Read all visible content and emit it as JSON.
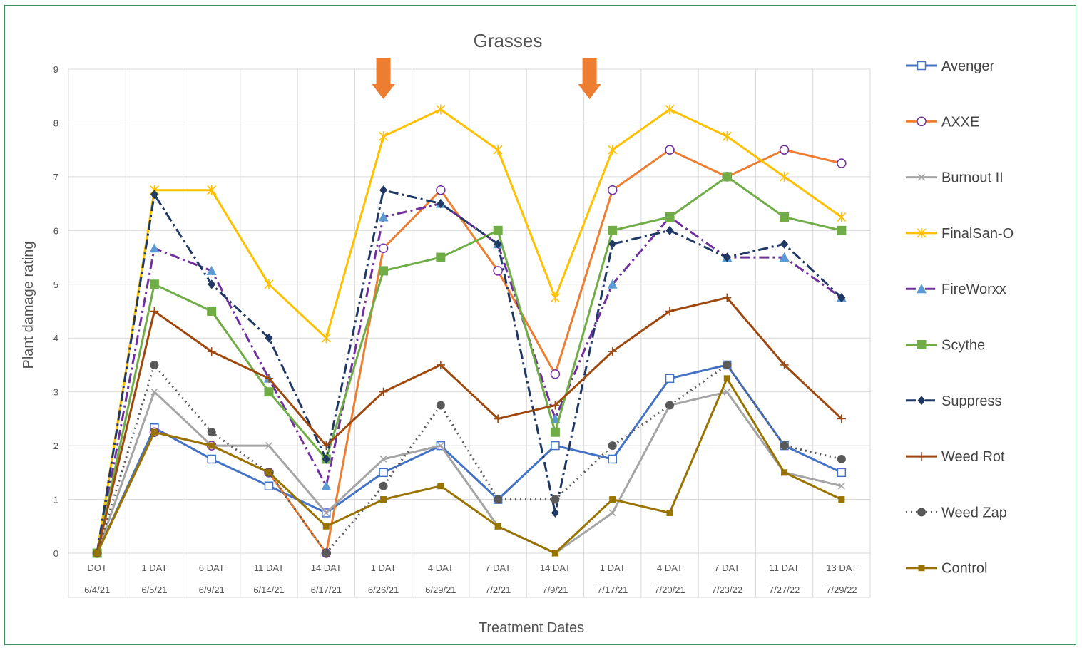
{
  "chart_data": {
    "type": "line",
    "title": "Grasses",
    "xlabel": "Treatment Dates",
    "ylabel": "Plant damage rating",
    "ylim": [
      0,
      9
    ],
    "yticks": [
      0,
      1,
      2,
      3,
      4,
      5,
      6,
      7,
      8,
      9
    ],
    "grid": true,
    "legend_position": "right",
    "categories": [
      {
        "top": "DOT",
        "bottom": "6/4/21"
      },
      {
        "top": "1 DAT",
        "bottom": "6/5/21"
      },
      {
        "top": "6 DAT",
        "bottom": "6/9/21"
      },
      {
        "top": "11 DAT",
        "bottom": "6/14/21"
      },
      {
        "top": "14 DAT",
        "bottom": "6/17/21"
      },
      {
        "top": "1 DAT",
        "bottom": "6/26/21"
      },
      {
        "top": "4 DAT",
        "bottom": "6/29/21"
      },
      {
        "top": "7 DAT",
        "bottom": "7/2/21"
      },
      {
        "top": "14 DAT",
        "bottom": "7/9/21"
      },
      {
        "top": "1 DAT",
        "bottom": "7/17/21"
      },
      {
        "top": "4 DAT",
        "bottom": "7/20/21"
      },
      {
        "top": "7 DAT",
        "bottom": "7/23/22"
      },
      {
        "top": "11 DAT",
        "bottom": "7/27/22"
      },
      {
        "top": "13 DAT",
        "bottom": "7/29/22"
      }
    ],
    "arrow_color": "#ed7d31",
    "arrow_positions": [
      5,
      8.6
    ],
    "series": [
      {
        "name": "Avenger",
        "color": "#4472c4",
        "marker": "open-square",
        "dash": "solid",
        "values": [
          0,
          2.33,
          1.75,
          1.25,
          0.75,
          1.5,
          2,
          1,
          2,
          1.75,
          3.25,
          3.5,
          2,
          1.5
        ]
      },
      {
        "name": "AXXE",
        "color": "#ed7d31",
        "marker": "open-circle",
        "marker_color": "#7030a0",
        "dash": "solid",
        "values": [
          0,
          2.25,
          2,
          1.5,
          0,
          5.67,
          6.75,
          5.25,
          3.33,
          6.75,
          7.5,
          7,
          7.5,
          7.25
        ]
      },
      {
        "name": "Burnout II",
        "color": "#a5a5a5",
        "marker": "x",
        "dash": "solid",
        "values": [
          0,
          3,
          2,
          2,
          0.75,
          1.75,
          2,
          0.5,
          0,
          0.75,
          2.75,
          3,
          1.5,
          1.25
        ]
      },
      {
        "name": "FinalSan-O",
        "color": "#ffc000",
        "marker": "star",
        "dash": "solid",
        "values": [
          0,
          6.75,
          6.75,
          5,
          4,
          7.75,
          8.25,
          7.5,
          4.75,
          7.5,
          8.25,
          7.75,
          7,
          6.25
        ]
      },
      {
        "name": "FireWorxx",
        "color": "#7030a0",
        "marker": "triangle",
        "marker_color": "#5b9bd5",
        "dash": "dashdot",
        "values": [
          0,
          5.67,
          5.25,
          3.25,
          1.25,
          6.25,
          6.5,
          5.75,
          2.5,
          5,
          6.25,
          5.5,
          5.5,
          4.75
        ]
      },
      {
        "name": "Scythe",
        "color": "#70ad47",
        "marker": "square",
        "dash": "solid",
        "values": [
          0,
          5,
          4.5,
          3,
          1.75,
          5.25,
          5.5,
          6,
          2.25,
          6,
          6.25,
          7,
          6.25,
          6
        ]
      },
      {
        "name": "Suppress",
        "color": "#1f3864",
        "marker": "diamond",
        "dash": "dashdot",
        "values": [
          0,
          6.67,
          5,
          4,
          1.75,
          6.75,
          6.5,
          5.75,
          0.75,
          5.75,
          6,
          5.5,
          5.75,
          4.75
        ]
      },
      {
        "name": "Weed Rot",
        "color": "#9e480e",
        "marker": "plus",
        "dash": "solid",
        "values": [
          0,
          4.5,
          3.75,
          3.25,
          2,
          3,
          3.5,
          2.5,
          2.75,
          3.75,
          4.5,
          4.75,
          3.5,
          2.5
        ]
      },
      {
        "name": "Weed Zap",
        "color": "#595959",
        "marker": "circle",
        "dash": "dotted",
        "values": [
          0,
          3.5,
          2.25,
          1.5,
          0,
          1.25,
          2.75,
          1,
          1,
          2,
          2.75,
          3.5,
          2,
          1.75
        ]
      },
      {
        "name": "Control",
        "color": "#997300",
        "marker": "small-square",
        "dash": "solid",
        "values": [
          0,
          2.25,
          2,
          1.5,
          0.5,
          1,
          1.25,
          0.5,
          0,
          1,
          0.75,
          3.25,
          1.5,
          1
        ]
      }
    ]
  }
}
